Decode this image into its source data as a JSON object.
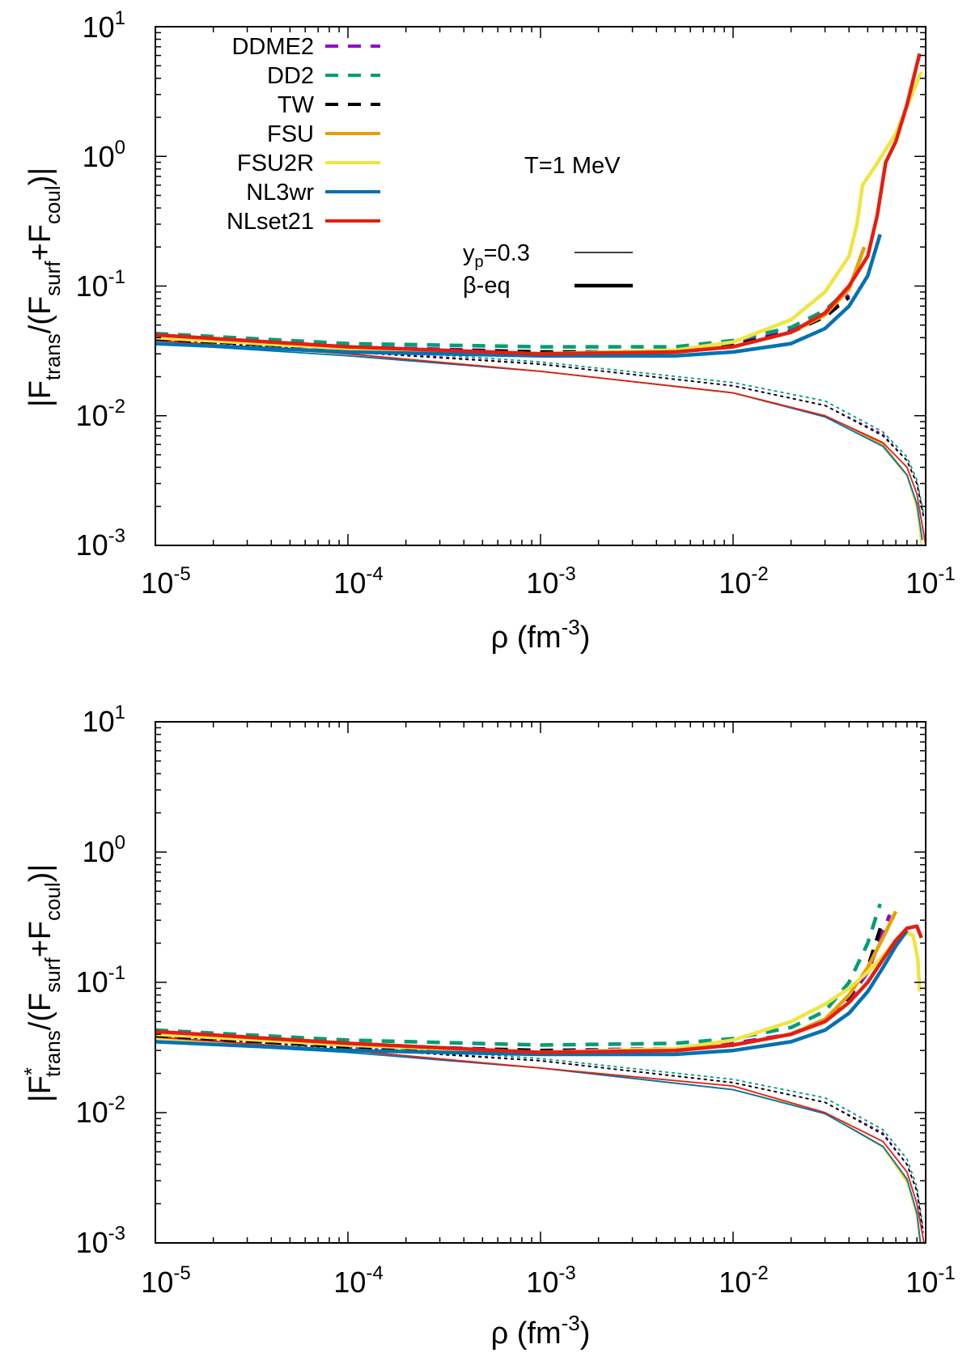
{
  "colors": {
    "DDME2": "#9400d3",
    "DD2": "#009e73",
    "TW": "#000000",
    "FSU": "#e69f00",
    "FSU2R": "#f0e442",
    "NL3wr": "#0072b2",
    "NLset21": "#e51e10"
  },
  "legend": {
    "models": [
      {
        "name": "DDME2",
        "style": "dashed"
      },
      {
        "name": "DD2",
        "style": "dashed"
      },
      {
        "name": "TW",
        "style": "dashed"
      },
      {
        "name": "FSU",
        "style": "solid"
      },
      {
        "name": "FSU2R",
        "style": "solid"
      },
      {
        "name": "NL3wr",
        "style": "solid"
      },
      {
        "name": "NLset21",
        "style": "solid"
      }
    ],
    "thickness": [
      {
        "label_main": "y",
        "label_sub": "p",
        "label_rest": "=0.3",
        "weight": "thin"
      },
      {
        "label_main": "β-eq",
        "weight": "thick"
      }
    ],
    "annotation": "T=1 MeV"
  },
  "chart_data": [
    {
      "type": "line",
      "panel": "top",
      "ylabel_text": "|F_trans/(F_surf+F_coul)|",
      "ylabel_parts": {
        "open": "|F",
        "sub1": "trans",
        "mid1": "/(F",
        "sub2": "surf",
        "mid2": "+F",
        "sub3": "coul",
        "close": ")|"
      },
      "xlabel_parts": {
        "main": "ρ (fm",
        "sup": "-3",
        "close": ")"
      },
      "xscale": "log",
      "yscale": "log",
      "xlim": [
        1e-05,
        0.1
      ],
      "ylim": [
        0.001,
        10
      ],
      "xticks": [
        {
          "base": "10",
          "exp": "-5"
        },
        {
          "base": "10",
          "exp": "-4"
        },
        {
          "base": "10",
          "exp": "-3"
        },
        {
          "base": "10",
          "exp": "-2"
        },
        {
          "base": "10",
          "exp": "-1"
        }
      ],
      "yticks": [
        {
          "base": "10",
          "exp": "-3"
        },
        {
          "base": "10",
          "exp": "-2"
        },
        {
          "base": "10",
          "exp": "-1"
        },
        {
          "base": "10",
          "exp": "0"
        },
        {
          "base": "10",
          "exp": "1"
        }
      ],
      "series": [
        {
          "model": "DDME2",
          "set": "beta-eq",
          "x": [
            1e-05,
            0.0001,
            0.001,
            0.005,
            0.01,
            0.02,
            0.03,
            0.04
          ],
          "y": [
            0.04,
            0.034,
            0.031,
            0.031,
            0.036,
            0.045,
            0.06,
            0.085
          ]
        },
        {
          "model": "DD2",
          "set": "beta-eq",
          "x": [
            1e-05,
            0.0001,
            0.001,
            0.005,
            0.01,
            0.02,
            0.03,
            0.04
          ],
          "y": [
            0.043,
            0.036,
            0.034,
            0.034,
            0.038,
            0.048,
            0.065,
            0.095
          ]
        },
        {
          "model": "TW",
          "set": "beta-eq",
          "x": [
            1e-05,
            0.0001,
            0.001,
            0.005,
            0.01,
            0.02,
            0.03,
            0.04
          ],
          "y": [
            0.039,
            0.033,
            0.031,
            0.031,
            0.035,
            0.044,
            0.058,
            0.082
          ]
        },
        {
          "model": "FSU",
          "set": "beta-eq",
          "x": [
            1e-05,
            0.0001,
            0.001,
            0.005,
            0.01,
            0.02,
            0.03,
            0.04,
            0.048
          ],
          "y": [
            0.041,
            0.033,
            0.03,
            0.031,
            0.034,
            0.044,
            0.06,
            0.095,
            0.2
          ]
        },
        {
          "model": "FSU2R",
          "set": "beta-eq",
          "x": [
            1e-05,
            0.0001,
            0.001,
            0.005,
            0.01,
            0.02,
            0.03,
            0.04,
            0.044,
            0.047,
            0.055,
            0.07,
            0.095
          ],
          "y": [
            0.04,
            0.033,
            0.03,
            0.032,
            0.037,
            0.055,
            0.09,
            0.17,
            0.3,
            0.6,
            0.85,
            1.5,
            4.5
          ]
        },
        {
          "model": "NL3wr",
          "set": "beta-eq",
          "x": [
            1e-05,
            0.0001,
            0.001,
            0.005,
            0.01,
            0.02,
            0.03,
            0.04,
            0.05,
            0.058
          ],
          "y": [
            0.036,
            0.031,
            0.029,
            0.029,
            0.031,
            0.036,
            0.047,
            0.07,
            0.12,
            0.25
          ]
        },
        {
          "model": "NLset21",
          "set": "beta-eq",
          "x": [
            1e-05,
            0.0001,
            0.001,
            0.005,
            0.01,
            0.02,
            0.03,
            0.04,
            0.05,
            0.056,
            0.062,
            0.07,
            0.08,
            0.093
          ],
          "y": [
            0.042,
            0.034,
            0.03,
            0.031,
            0.034,
            0.044,
            0.062,
            0.1,
            0.17,
            0.35,
            0.9,
            1.3,
            2.5,
            6.2
          ]
        },
        {
          "model": "DDME2",
          "set": "yp0.3",
          "x": [
            1e-05,
            0.0001,
            0.001,
            0.01,
            0.03,
            0.06,
            0.08,
            0.09,
            0.098
          ],
          "y": [
            0.04,
            0.032,
            0.025,
            0.017,
            0.012,
            0.0072,
            0.0045,
            0.003,
            0.0016
          ]
        },
        {
          "model": "DD2",
          "set": "yp0.3",
          "x": [
            1e-05,
            0.0001,
            0.001,
            0.01,
            0.03,
            0.06,
            0.08,
            0.09,
            0.098
          ],
          "y": [
            0.041,
            0.033,
            0.026,
            0.018,
            0.013,
            0.0075,
            0.0048,
            0.0032,
            0.0017
          ]
        },
        {
          "model": "TW",
          "set": "yp0.3",
          "x": [
            1e-05,
            0.0001,
            0.001,
            0.01,
            0.03,
            0.06,
            0.08,
            0.09,
            0.098
          ],
          "y": [
            0.039,
            0.031,
            0.025,
            0.017,
            0.012,
            0.007,
            0.0045,
            0.003,
            0.0016
          ]
        },
        {
          "model": "FSU",
          "set": "yp0.3",
          "x": [
            1e-05,
            0.0001,
            0.001,
            0.01,
            0.03,
            0.06,
            0.08,
            0.09,
            0.095
          ],
          "y": [
            0.037,
            0.03,
            0.022,
            0.015,
            0.01,
            0.006,
            0.0035,
            0.002,
            0.001
          ]
        },
        {
          "model": "FSU2R",
          "set": "yp0.3",
          "x": [
            1e-05,
            0.0001,
            0.001,
            0.01,
            0.03,
            0.06,
            0.08,
            0.09,
            0.095
          ],
          "y": [
            0.037,
            0.03,
            0.022,
            0.015,
            0.01,
            0.0058,
            0.0034,
            0.0019,
            0.001
          ]
        },
        {
          "model": "NL3wr",
          "set": "yp0.3",
          "x": [
            1e-05,
            0.0001,
            0.001,
            0.01,
            0.03,
            0.06,
            0.08,
            0.09,
            0.096
          ],
          "y": [
            0.036,
            0.029,
            0.022,
            0.015,
            0.0098,
            0.0058,
            0.0035,
            0.0021,
            0.0011
          ]
        },
        {
          "model": "NLset21",
          "set": "yp0.3",
          "x": [
            1e-05,
            0.0001,
            0.001,
            0.01,
            0.03,
            0.06,
            0.08,
            0.09,
            0.1
          ],
          "y": [
            0.038,
            0.03,
            0.022,
            0.015,
            0.01,
            0.0062,
            0.004,
            0.0025,
            0.001
          ]
        }
      ]
    },
    {
      "type": "line",
      "panel": "bottom",
      "ylabel_text": "|F*_trans/(F_surf+F_coul)|",
      "ylabel_parts": {
        "open": "|F",
        "star": "*",
        "sub1": "trans",
        "mid1": "/(F",
        "sub2": "surf",
        "mid2": "+F",
        "sub3": "coul",
        "close": ")|"
      },
      "xlabel_parts": {
        "main": "ρ (fm",
        "sup": "-3",
        "close": ")"
      },
      "xscale": "log",
      "yscale": "log",
      "xlim": [
        1e-05,
        0.1
      ],
      "ylim": [
        0.001,
        10
      ],
      "xticks": [
        {
          "base": "10",
          "exp": "-5"
        },
        {
          "base": "10",
          "exp": "-4"
        },
        {
          "base": "10",
          "exp": "-3"
        },
        {
          "base": "10",
          "exp": "-2"
        },
        {
          "base": "10",
          "exp": "-1"
        }
      ],
      "yticks": [
        {
          "base": "10",
          "exp": "-3"
        },
        {
          "base": "10",
          "exp": "-2"
        },
        {
          "base": "10",
          "exp": "-1"
        },
        {
          "base": "10",
          "exp": "0"
        },
        {
          "base": "10",
          "exp": "1"
        }
      ],
      "series": [
        {
          "model": "DDME2",
          "set": "beta-eq",
          "x": [
            1e-05,
            0.0001,
            0.001,
            0.005,
            0.01,
            0.02,
            0.03,
            0.04,
            0.05,
            0.065
          ],
          "y": [
            0.04,
            0.033,
            0.03,
            0.031,
            0.034,
            0.04,
            0.052,
            0.075,
            0.12,
            0.33
          ]
        },
        {
          "model": "DD2",
          "set": "beta-eq",
          "x": [
            1e-05,
            0.0001,
            0.001,
            0.005,
            0.01,
            0.02,
            0.03,
            0.04,
            0.05,
            0.058
          ],
          "y": [
            0.043,
            0.036,
            0.033,
            0.034,
            0.037,
            0.045,
            0.06,
            0.1,
            0.2,
            0.4
          ]
        },
        {
          "model": "TW",
          "set": "beta-eq",
          "x": [
            1e-05,
            0.0001,
            0.001,
            0.005,
            0.01,
            0.02,
            0.03,
            0.04,
            0.05,
            0.06
          ],
          "y": [
            0.039,
            0.032,
            0.03,
            0.03,
            0.033,
            0.04,
            0.052,
            0.078,
            0.13,
            0.3
          ]
        },
        {
          "model": "FSU",
          "set": "beta-eq",
          "x": [
            1e-05,
            0.0001,
            0.001,
            0.005,
            0.01,
            0.02,
            0.03,
            0.04,
            0.05,
            0.06,
            0.07
          ],
          "y": [
            0.041,
            0.033,
            0.029,
            0.03,
            0.033,
            0.04,
            0.052,
            0.08,
            0.13,
            0.22,
            0.35
          ]
        },
        {
          "model": "FSU2R",
          "set": "beta-eq",
          "x": [
            1e-05,
            0.0001,
            0.001,
            0.005,
            0.01,
            0.02,
            0.03,
            0.04,
            0.05,
            0.06,
            0.07,
            0.08,
            0.086,
            0.091,
            0.093
          ],
          "y": [
            0.04,
            0.033,
            0.029,
            0.031,
            0.036,
            0.05,
            0.068,
            0.09,
            0.12,
            0.16,
            0.21,
            0.24,
            0.23,
            0.15,
            0.085
          ]
        },
        {
          "model": "NL3wr",
          "set": "beta-eq",
          "x": [
            1e-05,
            0.0001,
            0.001,
            0.005,
            0.01,
            0.02,
            0.03,
            0.04,
            0.05,
            0.06,
            0.07,
            0.08
          ],
          "y": [
            0.035,
            0.03,
            0.028,
            0.028,
            0.03,
            0.035,
            0.043,
            0.058,
            0.085,
            0.13,
            0.19,
            0.25
          ]
        },
        {
          "model": "NLset21",
          "set": "beta-eq",
          "x": [
            1e-05,
            0.0001,
            0.001,
            0.005,
            0.01,
            0.02,
            0.03,
            0.04,
            0.05,
            0.06,
            0.07,
            0.08,
            0.09,
            0.095
          ],
          "y": [
            0.042,
            0.034,
            0.029,
            0.03,
            0.033,
            0.04,
            0.05,
            0.07,
            0.1,
            0.15,
            0.21,
            0.26,
            0.27,
            0.22
          ]
        },
        {
          "model": "DDME2",
          "set": "yp0.3",
          "x": [
            1e-05,
            0.0001,
            0.001,
            0.01,
            0.03,
            0.06,
            0.08,
            0.09,
            0.097
          ],
          "y": [
            0.04,
            0.032,
            0.025,
            0.017,
            0.012,
            0.007,
            0.004,
            0.0025,
            0.0012
          ]
        },
        {
          "model": "DD2",
          "set": "yp0.3",
          "x": [
            1e-05,
            0.0001,
            0.001,
            0.01,
            0.03,
            0.06,
            0.08,
            0.09,
            0.097
          ],
          "y": [
            0.041,
            0.033,
            0.026,
            0.018,
            0.013,
            0.0074,
            0.0044,
            0.0027,
            0.0013
          ]
        },
        {
          "model": "TW",
          "set": "yp0.3",
          "x": [
            1e-05,
            0.0001,
            0.001,
            0.01,
            0.03,
            0.06,
            0.08,
            0.09,
            0.097
          ],
          "y": [
            0.039,
            0.031,
            0.025,
            0.017,
            0.012,
            0.0068,
            0.004,
            0.0025,
            0.0012
          ]
        },
        {
          "model": "FSU",
          "set": "yp0.3",
          "x": [
            1e-05,
            0.0001,
            0.001,
            0.01,
            0.03,
            0.06,
            0.08,
            0.09,
            0.093
          ],
          "y": [
            0.037,
            0.03,
            0.022,
            0.015,
            0.01,
            0.0055,
            0.003,
            0.0016,
            0.001
          ]
        },
        {
          "model": "FSU2R",
          "set": "yp0.3",
          "x": [
            1e-05,
            0.0001,
            0.001,
            0.01,
            0.03,
            0.06,
            0.08,
            0.09,
            0.093
          ],
          "y": [
            0.037,
            0.029,
            0.022,
            0.015,
            0.01,
            0.0054,
            0.0029,
            0.0016,
            0.001
          ]
        },
        {
          "model": "NL3wr",
          "set": "yp0.3",
          "x": [
            1e-05,
            0.0001,
            0.001,
            0.01,
            0.03,
            0.06,
            0.08,
            0.09,
            0.094
          ],
          "y": [
            0.035,
            0.029,
            0.022,
            0.015,
            0.0098,
            0.0055,
            0.0031,
            0.0017,
            0.001
          ]
        },
        {
          "model": "NLset21",
          "set": "yp0.3",
          "x": [
            1e-05,
            0.0001,
            0.001,
            0.01,
            0.03,
            0.06,
            0.08,
            0.09,
            0.098
          ],
          "y": [
            0.038,
            0.03,
            0.022,
            0.016,
            0.01,
            0.006,
            0.0035,
            0.002,
            0.001
          ]
        }
      ]
    }
  ]
}
